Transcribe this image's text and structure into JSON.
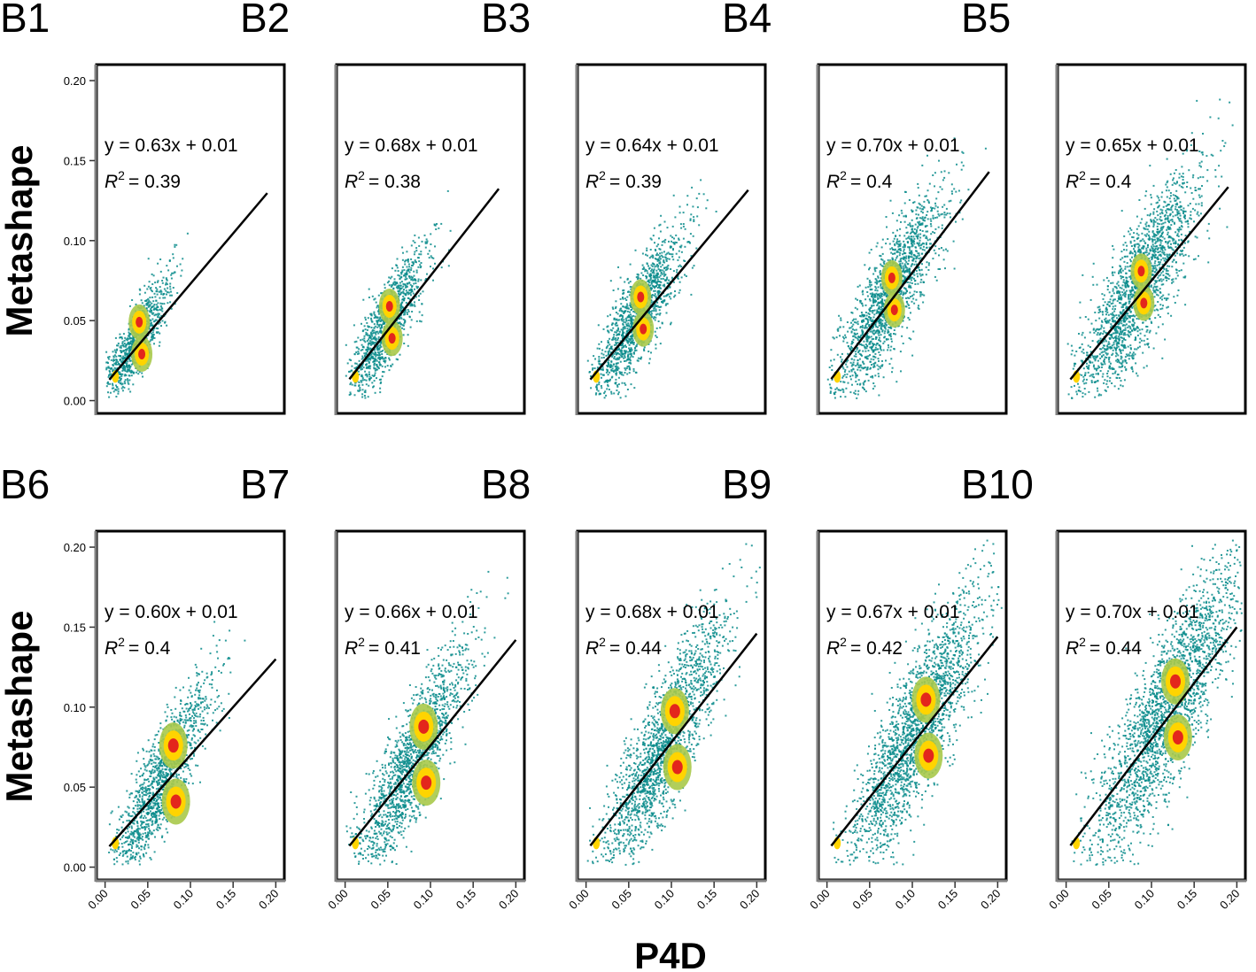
{
  "xlabel": "P4D",
  "ylabel": "Metashape",
  "colors": {
    "low": "#0a8c8c",
    "mid": "#a8c94a",
    "high": "#ffd400",
    "peak": "#e3261c",
    "line": "#000000"
  },
  "chart_data": [
    {
      "type": "scatter",
      "label": "B1",
      "equation": "y = 0.63x + 0.01",
      "r2_label": "R",
      "r2_sup": "2",
      "r2_value": "= 0.39",
      "slope": 0.63,
      "intercept": 0.01,
      "fit_x_range": [
        0.005,
        0.19
      ],
      "xlim": [
        -0.01,
        0.21
      ],
      "ylim": [
        -0.008,
        0.21
      ],
      "xticks": [
        "0.00",
        "0.05",
        "0.10",
        "0.15",
        "0.20"
      ],
      "yticks": [
        "0.00",
        "0.05",
        "0.10",
        "0.15",
        "0.20"
      ],
      "xtick_values": [
        0,
        0.05,
        0.1,
        0.15,
        0.2
      ],
      "ytick_values": [
        0,
        0.05,
        0.1,
        0.15,
        0.2
      ]
    },
    {
      "type": "scatter",
      "label": "B2",
      "equation": "y = 0.68x + 0.01",
      "r2_label": "R",
      "r2_sup": "2",
      "r2_value": "= 0.38",
      "slope": 0.68,
      "intercept": 0.01,
      "fit_x_range": [
        0.005,
        0.18
      ],
      "xlim": [
        -0.01,
        0.21
      ],
      "ylim": [
        -0.008,
        0.21
      ],
      "xticks": [
        "0.00",
        "0.05",
        "0.10",
        "0.15",
        "0.20"
      ],
      "yticks": [
        "0.00",
        "0.05",
        "0.10",
        "0.15",
        "0.20"
      ],
      "xtick_values": [
        0,
        0.05,
        0.1,
        0.15,
        0.2
      ],
      "ytick_values": [
        0,
        0.05,
        0.1,
        0.15,
        0.2
      ]
    },
    {
      "type": "scatter",
      "label": "B3",
      "equation": "y = 0.64x + 0.01",
      "r2_label": "R",
      "r2_sup": "2",
      "r2_value": "= 0.39",
      "slope": 0.64,
      "intercept": 0.01,
      "fit_x_range": [
        0.005,
        0.19
      ],
      "xlim": [
        -0.01,
        0.21
      ],
      "ylim": [
        -0.008,
        0.21
      ],
      "xticks": [
        "0.00",
        "0.05",
        "0.10",
        "0.15",
        "0.20"
      ],
      "yticks": [
        "0.00",
        "0.05",
        "0.10",
        "0.15",
        "0.20"
      ],
      "xtick_values": [
        0,
        0.05,
        0.1,
        0.15,
        0.2
      ],
      "ytick_values": [
        0,
        0.05,
        0.1,
        0.15,
        0.2
      ]
    },
    {
      "type": "scatter",
      "label": "B4",
      "equation": "y = 0.70x + 0.01",
      "r2_label": "R",
      "r2_sup": "2",
      "r2_value": "= 0.4",
      "slope": 0.7,
      "intercept": 0.01,
      "fit_x_range": [
        0.005,
        0.19
      ],
      "xlim": [
        -0.01,
        0.21
      ],
      "ylim": [
        -0.008,
        0.21
      ],
      "xticks": [
        "0.00",
        "0.05",
        "0.10",
        "0.15",
        "0.20"
      ],
      "yticks": [
        "0.00",
        "0.05",
        "0.10",
        "0.15",
        "0.20"
      ],
      "xtick_values": [
        0,
        0.05,
        0.1,
        0.15,
        0.2
      ],
      "ytick_values": [
        0,
        0.05,
        0.1,
        0.15,
        0.2
      ]
    },
    {
      "type": "scatter",
      "label": "B5",
      "equation": "y = 0.65x + 0.01",
      "r2_label": "R",
      "r2_sup": "2",
      "r2_value": "= 0.4",
      "slope": 0.65,
      "intercept": 0.01,
      "fit_x_range": [
        0.005,
        0.19
      ],
      "xlim": [
        -0.01,
        0.21
      ],
      "ylim": [
        -0.008,
        0.21
      ],
      "xticks": [
        "0.00",
        "0.05",
        "0.10",
        "0.15",
        "0.20"
      ],
      "yticks": [
        "0.00",
        "0.05",
        "0.10",
        "0.15",
        "0.20"
      ],
      "xtick_values": [
        0,
        0.05,
        0.1,
        0.15,
        0.2
      ],
      "ytick_values": [
        0,
        0.05,
        0.1,
        0.15,
        0.2
      ]
    },
    {
      "type": "scatter",
      "label": "B6",
      "equation": "y = 0.60x + 0.01",
      "r2_label": "R",
      "r2_sup": "2",
      "r2_value": "= 0.4",
      "slope": 0.6,
      "intercept": 0.01,
      "fit_x_range": [
        0.005,
        0.2
      ],
      "xlim": [
        -0.01,
        0.21
      ],
      "ylim": [
        -0.008,
        0.21
      ],
      "xticks": [
        "0.00",
        "0.05",
        "0.10",
        "0.15",
        "0.20"
      ],
      "yticks": [
        "0.00",
        "0.05",
        "0.10",
        "0.15",
        "0.20"
      ],
      "xtick_values": [
        0,
        0.05,
        0.1,
        0.15,
        0.2
      ],
      "ytick_values": [
        0,
        0.05,
        0.1,
        0.15,
        0.2
      ]
    },
    {
      "type": "scatter",
      "label": "B7",
      "equation": "y = 0.66x + 0.01",
      "r2_label": "R",
      "r2_sup": "2",
      "r2_value": "= 0.41",
      "slope": 0.66,
      "intercept": 0.01,
      "fit_x_range": [
        0.005,
        0.2
      ],
      "xlim": [
        -0.01,
        0.21
      ],
      "ylim": [
        -0.008,
        0.21
      ],
      "xticks": [
        "0.00",
        "0.05",
        "0.10",
        "0.15",
        "0.20"
      ],
      "yticks": [
        "0.00",
        "0.05",
        "0.10",
        "0.15",
        "0.20"
      ],
      "xtick_values": [
        0,
        0.05,
        0.1,
        0.15,
        0.2
      ],
      "ytick_values": [
        0,
        0.05,
        0.1,
        0.15,
        0.2
      ]
    },
    {
      "type": "scatter",
      "label": "B8",
      "equation": "y = 0.68x + 0.01",
      "r2_label": "R",
      "r2_sup": "2",
      "r2_value": "= 0.44",
      "slope": 0.68,
      "intercept": 0.01,
      "fit_x_range": [
        0.005,
        0.2
      ],
      "xlim": [
        -0.01,
        0.21
      ],
      "ylim": [
        -0.008,
        0.21
      ],
      "xticks": [
        "0.00",
        "0.05",
        "0.10",
        "0.15",
        "0.20"
      ],
      "yticks": [
        "0.00",
        "0.05",
        "0.10",
        "0.15",
        "0.20"
      ],
      "xtick_values": [
        0,
        0.05,
        0.1,
        0.15,
        0.2
      ],
      "ytick_values": [
        0,
        0.05,
        0.1,
        0.15,
        0.2
      ]
    },
    {
      "type": "scatter",
      "label": "B9",
      "equation": "y = 0.67x + 0.01",
      "r2_label": "R",
      "r2_sup": "2",
      "r2_value": "= 0.42",
      "slope": 0.67,
      "intercept": 0.01,
      "fit_x_range": [
        0.005,
        0.2
      ],
      "xlim": [
        -0.01,
        0.21
      ],
      "ylim": [
        -0.008,
        0.21
      ],
      "xticks": [
        "0.00",
        "0.05",
        "0.10",
        "0.15",
        "0.20"
      ],
      "yticks": [
        "0.00",
        "0.05",
        "0.10",
        "0.15",
        "0.20"
      ],
      "xtick_values": [
        0,
        0.05,
        0.1,
        0.15,
        0.2
      ],
      "ytick_values": [
        0,
        0.05,
        0.1,
        0.15,
        0.2
      ]
    },
    {
      "type": "scatter",
      "label": "B10",
      "equation": "y = 0.70x + 0.01",
      "r2_label": "R",
      "r2_sup": "2",
      "r2_value": "= 0.44",
      "slope": 0.7,
      "intercept": 0.01,
      "fit_x_range": [
        0.005,
        0.2
      ],
      "xlim": [
        -0.01,
        0.21
      ],
      "ylim": [
        -0.008,
        0.21
      ],
      "xticks": [
        "0.00",
        "0.05",
        "0.10",
        "0.15",
        "0.20"
      ],
      "yticks": [
        "0.00",
        "0.05",
        "0.10",
        "0.15",
        "0.20"
      ],
      "xtick_values": [
        0,
        0.05,
        0.1,
        0.15,
        0.2
      ],
      "ytick_values": [
        0,
        0.05,
        0.1,
        0.15,
        0.2
      ]
    }
  ]
}
